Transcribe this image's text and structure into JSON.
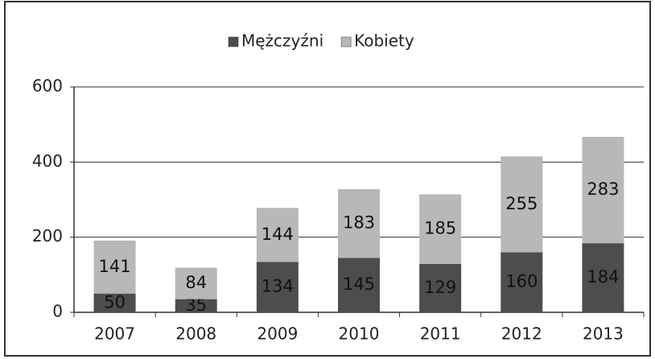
{
  "chart_data": {
    "type": "stacked_bar",
    "categories": [
      "2007",
      "2008",
      "2009",
      "2010",
      "2011",
      "2012",
      "2013"
    ],
    "series": [
      {
        "name": "Mężczyźni",
        "color": "#4d4d4d",
        "values": [
          50,
          35,
          134,
          145,
          129,
          160,
          184
        ]
      },
      {
        "name": "Kobiety",
        "color": "#b8b8b8",
        "values": [
          141,
          84,
          144,
          183,
          185,
          255,
          283
        ]
      }
    ],
    "ylim": [
      0,
      600
    ],
    "yticks": [
      0,
      200,
      400,
      600
    ],
    "grid": true,
    "legend": "top"
  }
}
